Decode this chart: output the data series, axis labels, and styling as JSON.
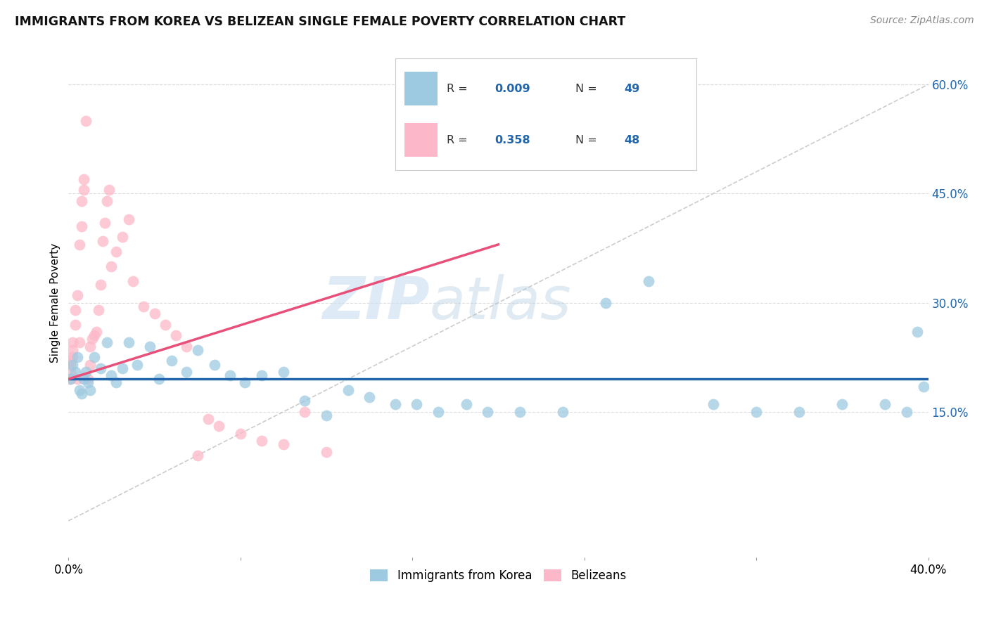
{
  "title": "IMMIGRANTS FROM KOREA VS BELIZEAN SINGLE FEMALE POVERTY CORRELATION CHART",
  "source": "Source: ZipAtlas.com",
  "ylabel": "Single Female Poverty",
  "legend_label1": "Immigrants from Korea",
  "legend_label2": "Belizeans",
  "watermark_zip": "ZIP",
  "watermark_atlas": "atlas",
  "blue_color": "#9ecae1",
  "pink_color": "#fcb8c8",
  "blue_line_color": "#2166ac",
  "pink_line_color": "#e8507a",
  "xlim": [
    0.0,
    0.4
  ],
  "ylim": [
    -0.05,
    0.65
  ],
  "yticks": [
    0.15,
    0.3,
    0.45,
    0.6
  ],
  "ytick_labels": [
    "15.0%",
    "30.0%",
    "45.0%",
    "60.0%"
  ],
  "xtick_vals": [
    0.0,
    0.08,
    0.16,
    0.24,
    0.32,
    0.4
  ],
  "xtick_labels": [
    "0.0%",
    "",
    "",
    "",
    "",
    "40.0%"
  ],
  "blue_scatter_x": [
    0.001,
    0.002,
    0.003,
    0.004,
    0.005,
    0.006,
    0.007,
    0.008,
    0.009,
    0.01,
    0.012,
    0.015,
    0.018,
    0.02,
    0.022,
    0.025,
    0.028,
    0.032,
    0.038,
    0.042,
    0.048,
    0.055,
    0.06,
    0.068,
    0.075,
    0.082,
    0.09,
    0.1,
    0.11,
    0.12,
    0.13,
    0.14,
    0.152,
    0.162,
    0.172,
    0.185,
    0.195,
    0.21,
    0.23,
    0.25,
    0.27,
    0.3,
    0.32,
    0.34,
    0.36,
    0.38,
    0.39,
    0.395,
    0.398
  ],
  "blue_scatter_y": [
    0.195,
    0.215,
    0.205,
    0.225,
    0.18,
    0.175,
    0.195,
    0.205,
    0.19,
    0.18,
    0.225,
    0.21,
    0.245,
    0.2,
    0.19,
    0.21,
    0.245,
    0.215,
    0.24,
    0.195,
    0.22,
    0.205,
    0.235,
    0.215,
    0.2,
    0.19,
    0.2,
    0.205,
    0.165,
    0.145,
    0.18,
    0.17,
    0.16,
    0.16,
    0.15,
    0.16,
    0.15,
    0.15,
    0.15,
    0.3,
    0.33,
    0.16,
    0.15,
    0.15,
    0.16,
    0.16,
    0.15,
    0.26,
    0.185
  ],
  "pink_scatter_x": [
    0.001,
    0.001,
    0.001,
    0.001,
    0.002,
    0.002,
    0.002,
    0.003,
    0.003,
    0.004,
    0.004,
    0.005,
    0.005,
    0.006,
    0.006,
    0.007,
    0.007,
    0.008,
    0.009,
    0.01,
    0.01,
    0.011,
    0.012,
    0.013,
    0.014,
    0.015,
    0.016,
    0.017,
    0.018,
    0.019,
    0.02,
    0.022,
    0.025,
    0.028,
    0.03,
    0.035,
    0.04,
    0.045,
    0.05,
    0.055,
    0.06,
    0.065,
    0.07,
    0.08,
    0.09,
    0.1,
    0.11,
    0.12
  ],
  "pink_scatter_y": [
    0.195,
    0.205,
    0.215,
    0.22,
    0.225,
    0.235,
    0.245,
    0.27,
    0.29,
    0.31,
    0.195,
    0.245,
    0.38,
    0.405,
    0.44,
    0.455,
    0.47,
    0.55,
    0.195,
    0.215,
    0.24,
    0.25,
    0.255,
    0.26,
    0.29,
    0.325,
    0.385,
    0.41,
    0.44,
    0.455,
    0.35,
    0.37,
    0.39,
    0.415,
    0.33,
    0.295,
    0.285,
    0.27,
    0.255,
    0.24,
    0.09,
    0.14,
    0.13,
    0.12,
    0.11,
    0.105,
    0.15,
    0.095
  ],
  "blue_trend_x": [
    0.0,
    0.4
  ],
  "blue_trend_y": [
    0.195,
    0.195
  ],
  "pink_trend_x": [
    0.0,
    0.2
  ],
  "pink_trend_y": [
    0.195,
    0.38
  ],
  "diag_line_x": [
    0.0,
    0.4
  ],
  "diag_line_y": [
    0.0,
    0.6
  ]
}
